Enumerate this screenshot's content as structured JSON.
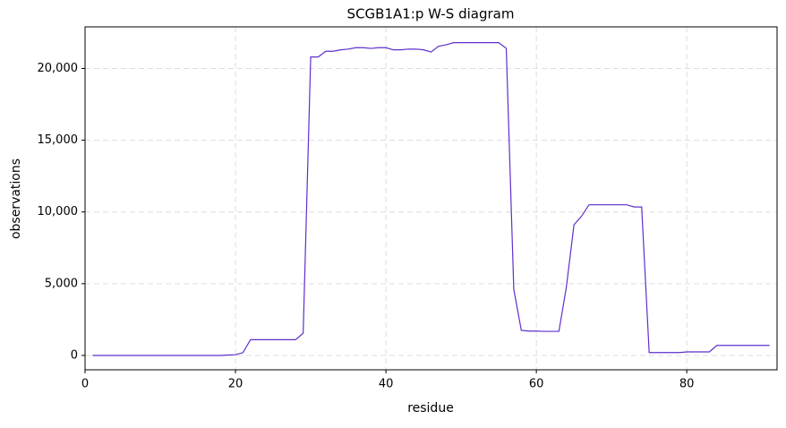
{
  "chart_data": {
    "type": "line",
    "title": "SCGB1A1:p W-S diagram",
    "x_label": "residue",
    "y_label": "observations",
    "x": [
      1,
      2,
      3,
      4,
      5,
      6,
      7,
      8,
      9,
      10,
      11,
      12,
      13,
      14,
      15,
      16,
      17,
      18,
      19,
      20,
      21,
      22,
      23,
      24,
      25,
      26,
      27,
      28,
      29,
      30,
      31,
      32,
      33,
      34,
      35,
      36,
      37,
      38,
      39,
      40,
      41,
      42,
      43,
      44,
      45,
      46,
      47,
      48,
      49,
      50,
      51,
      52,
      53,
      54,
      55,
      56,
      57,
      58,
      59,
      60,
      61,
      62,
      63,
      64,
      65,
      66,
      67,
      68,
      69,
      70,
      71,
      72,
      73,
      74,
      75,
      76,
      77,
      78,
      79,
      80,
      81,
      82,
      83,
      84,
      85,
      86,
      87,
      88,
      89,
      90,
      91
    ],
    "series": [
      {
        "name": "observations",
        "color": "#5e2fcc",
        "values": [
          0,
          0,
          0,
          0,
          0,
          0,
          0,
          0,
          0,
          0,
          0,
          0,
          0,
          0,
          0,
          0,
          0,
          0,
          30,
          50,
          200,
          1100,
          1100,
          1100,
          1100,
          1100,
          1100,
          1100,
          1550,
          20800,
          20800,
          21200,
          21200,
          21300,
          21350,
          21450,
          21450,
          21400,
          21450,
          21450,
          21300,
          21300,
          21350,
          21350,
          21300,
          21150,
          21550,
          21650,
          21800,
          21800,
          21800,
          21800,
          21800,
          21800,
          21800,
          21400,
          4600,
          1750,
          1700,
          1700,
          1680,
          1680,
          1680,
          4800,
          9100,
          9700,
          10500,
          10500,
          10500,
          10500,
          10500,
          10500,
          10350,
          10350,
          200,
          200,
          200,
          200,
          200,
          250,
          250,
          250,
          250,
          700,
          700,
          700,
          700,
          700,
          700,
          700,
          700
        ]
      }
    ],
    "xlim": [
      0,
      92
    ],
    "ylim": [
      -1000,
      22900
    ],
    "xticks": [
      0,
      20,
      40,
      60,
      80
    ],
    "yticks": [
      0,
      {
        "value": 5000,
        "label": "5,000"
      },
      {
        "value": 10000,
        "label": "10,000"
      },
      {
        "value": 15000,
        "label": "15,000"
      },
      {
        "value": 20000,
        "label": "20,000"
      }
    ],
    "grid": true
  }
}
